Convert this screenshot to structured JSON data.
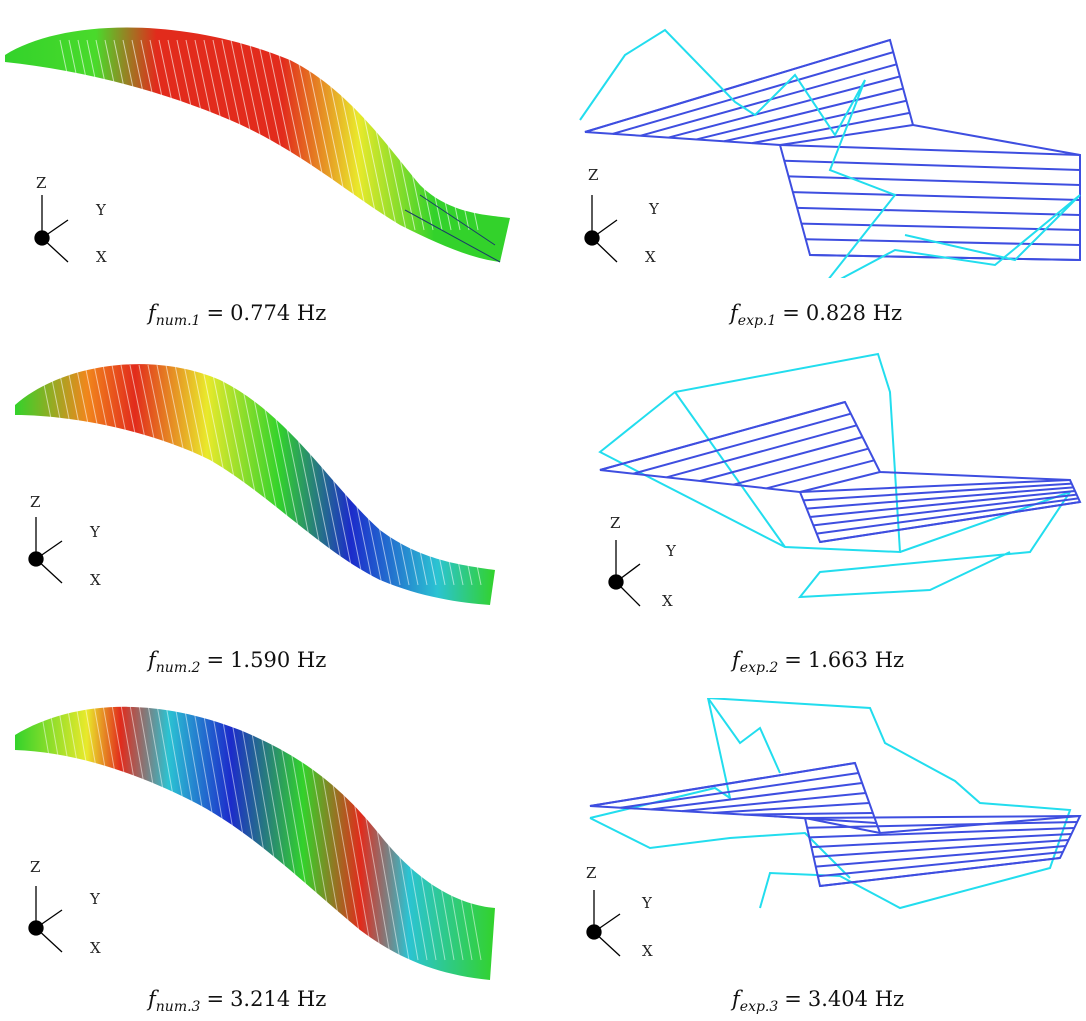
{
  "axis_labels": {
    "z": "Z",
    "y": "Y",
    "x": "X"
  },
  "unit": "Hz",
  "colors": {
    "fe_red": "#e02010",
    "fe_orange": "#f08010",
    "fe_yellow": "#e8e820",
    "fe_green": "#28d020",
    "fe_cyan": "#20d0d0",
    "fe_blue": "#1020c8",
    "exp_deformed": "#22ddee",
    "exp_undeformed": "#3e4ee0"
  },
  "modes": [
    {
      "num": {
        "symbol": "f",
        "sub": "num.1",
        "value": "0.774"
      },
      "exp": {
        "symbol": "f",
        "sub": "exp.1",
        "value": "0.828"
      }
    },
    {
      "num": {
        "symbol": "f",
        "sub": "num.2",
        "value": "1.590"
      },
      "exp": {
        "symbol": "f",
        "sub": "exp.2",
        "value": "1.663"
      }
    },
    {
      "num": {
        "symbol": "f",
        "sub": "num.3",
        "value": "3.214"
      },
      "exp": {
        "symbol": "f",
        "sub": "exp.3",
        "value": "3.404"
      }
    }
  ]
}
